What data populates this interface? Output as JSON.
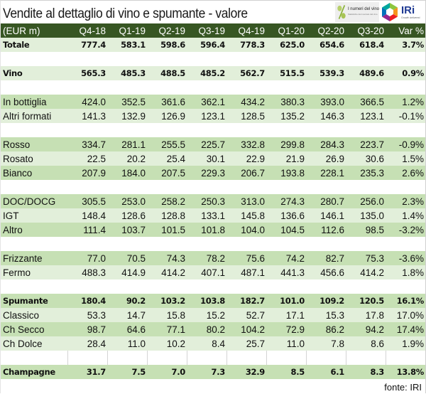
{
  "title": "Vendite al dettaglio di vino e spumante - valore",
  "logos": {
    "numeri_del_vino": "I numeri del vino",
    "numeri_del_vino_sub": "Statistiche del mercato del vino",
    "iri": "IRi",
    "iri_tagline": "Growth delivered"
  },
  "colors": {
    "header_bg": "#375623",
    "row_dark": "#c6e0b4",
    "row_light": "#e2efda"
  },
  "table": {
    "columns": [
      "(EUR m)",
      "Q4-18",
      "Q1-19",
      "Q2-19",
      "Q3-19",
      "Q4-19",
      "Q1-20",
      "Q2-20",
      "Q3-20",
      "Var %"
    ],
    "rows": [
      {
        "label": "Totale",
        "values": [
          "777.4",
          "583.1",
          "598.6",
          "596.4",
          "778.3",
          "625.0",
          "654.6",
          "618.4",
          "3.7%"
        ]
      },
      {
        "label": "Vino",
        "values": [
          "565.3",
          "485.3",
          "488.5",
          "485.2",
          "562.7",
          "515.5",
          "539.3",
          "489.6",
          "0.9%"
        ]
      },
      {
        "label": "In bottiglia",
        "values": [
          "424.0",
          "352.5",
          "361.6",
          "362.1",
          "434.2",
          "380.3",
          "393.0",
          "366.5",
          "1.2%"
        ]
      },
      {
        "label": "Altri formati",
        "values": [
          "141.3",
          "132.9",
          "126.9",
          "123.1",
          "128.5",
          "135.2",
          "146.3",
          "123.1",
          "-0.1%"
        ]
      },
      {
        "label": "Rosso",
        "values": [
          "334.7",
          "281.1",
          "255.5",
          "225.7",
          "332.8",
          "299.8",
          "284.3",
          "223.7",
          "-0.9%"
        ]
      },
      {
        "label": "Rosato",
        "values": [
          "22.5",
          "20.2",
          "25.4",
          "30.1",
          "22.9",
          "21.9",
          "26.9",
          "30.6",
          "1.5%"
        ]
      },
      {
        "label": "Bianco",
        "values": [
          "207.9",
          "184.0",
          "207.5",
          "229.3",
          "206.7",
          "193.8",
          "228.1",
          "235.3",
          "2.6%"
        ]
      },
      {
        "label": "DOC/DOCG",
        "values": [
          "305.5",
          "253.0",
          "258.2",
          "250.3",
          "313.0",
          "274.3",
          "280.7",
          "256.0",
          "2.3%"
        ]
      },
      {
        "label": "IGT",
        "values": [
          "148.4",
          "128.6",
          "128.8",
          "133.1",
          "145.8",
          "136.6",
          "146.1",
          "135.0",
          "1.4%"
        ]
      },
      {
        "label": "Altro",
        "values": [
          "111.4",
          "103.7",
          "101.5",
          "101.8",
          "104.0",
          "104.5",
          "112.6",
          "98.5",
          "-3.2%"
        ]
      },
      {
        "label": "Frizzante",
        "values": [
          "77.0",
          "70.5",
          "74.3",
          "78.2",
          "75.6",
          "74.2",
          "82.7",
          "75.3",
          "-3.6%"
        ]
      },
      {
        "label": "Fermo",
        "values": [
          "488.3",
          "414.9",
          "414.2",
          "407.1",
          "487.1",
          "441.3",
          "456.6",
          "414.2",
          "1.8%"
        ]
      },
      {
        "label": "Spumante",
        "values": [
          "180.4",
          "90.2",
          "103.2",
          "103.8",
          "182.7",
          "101.0",
          "109.2",
          "120.5",
          "16.1%"
        ]
      },
      {
        "label": "Classico",
        "values": [
          "53.3",
          "14.7",
          "15.8",
          "15.2",
          "52.7",
          "17.1",
          "15.3",
          "17.8",
          "17.0%"
        ]
      },
      {
        "label": "Ch Secco",
        "values": [
          "98.7",
          "64.6",
          "77.1",
          "80.2",
          "104.2",
          "72.9",
          "86.2",
          "94.2",
          "17.4%"
        ]
      },
      {
        "label": "Ch Dolce",
        "values": [
          "28.4",
          "11.0",
          "10.2",
          "8.4",
          "25.7",
          "11.0",
          "7.8",
          "8.6",
          "1.9%"
        ]
      },
      {
        "label": "Champagne",
        "values": [
          "31.7",
          "7.5",
          "7.0",
          "7.3",
          "32.9",
          "8.5",
          "6.1",
          "8.3",
          "13.8%"
        ]
      }
    ]
  },
  "footer": {
    "source": "fonte: IRI"
  }
}
